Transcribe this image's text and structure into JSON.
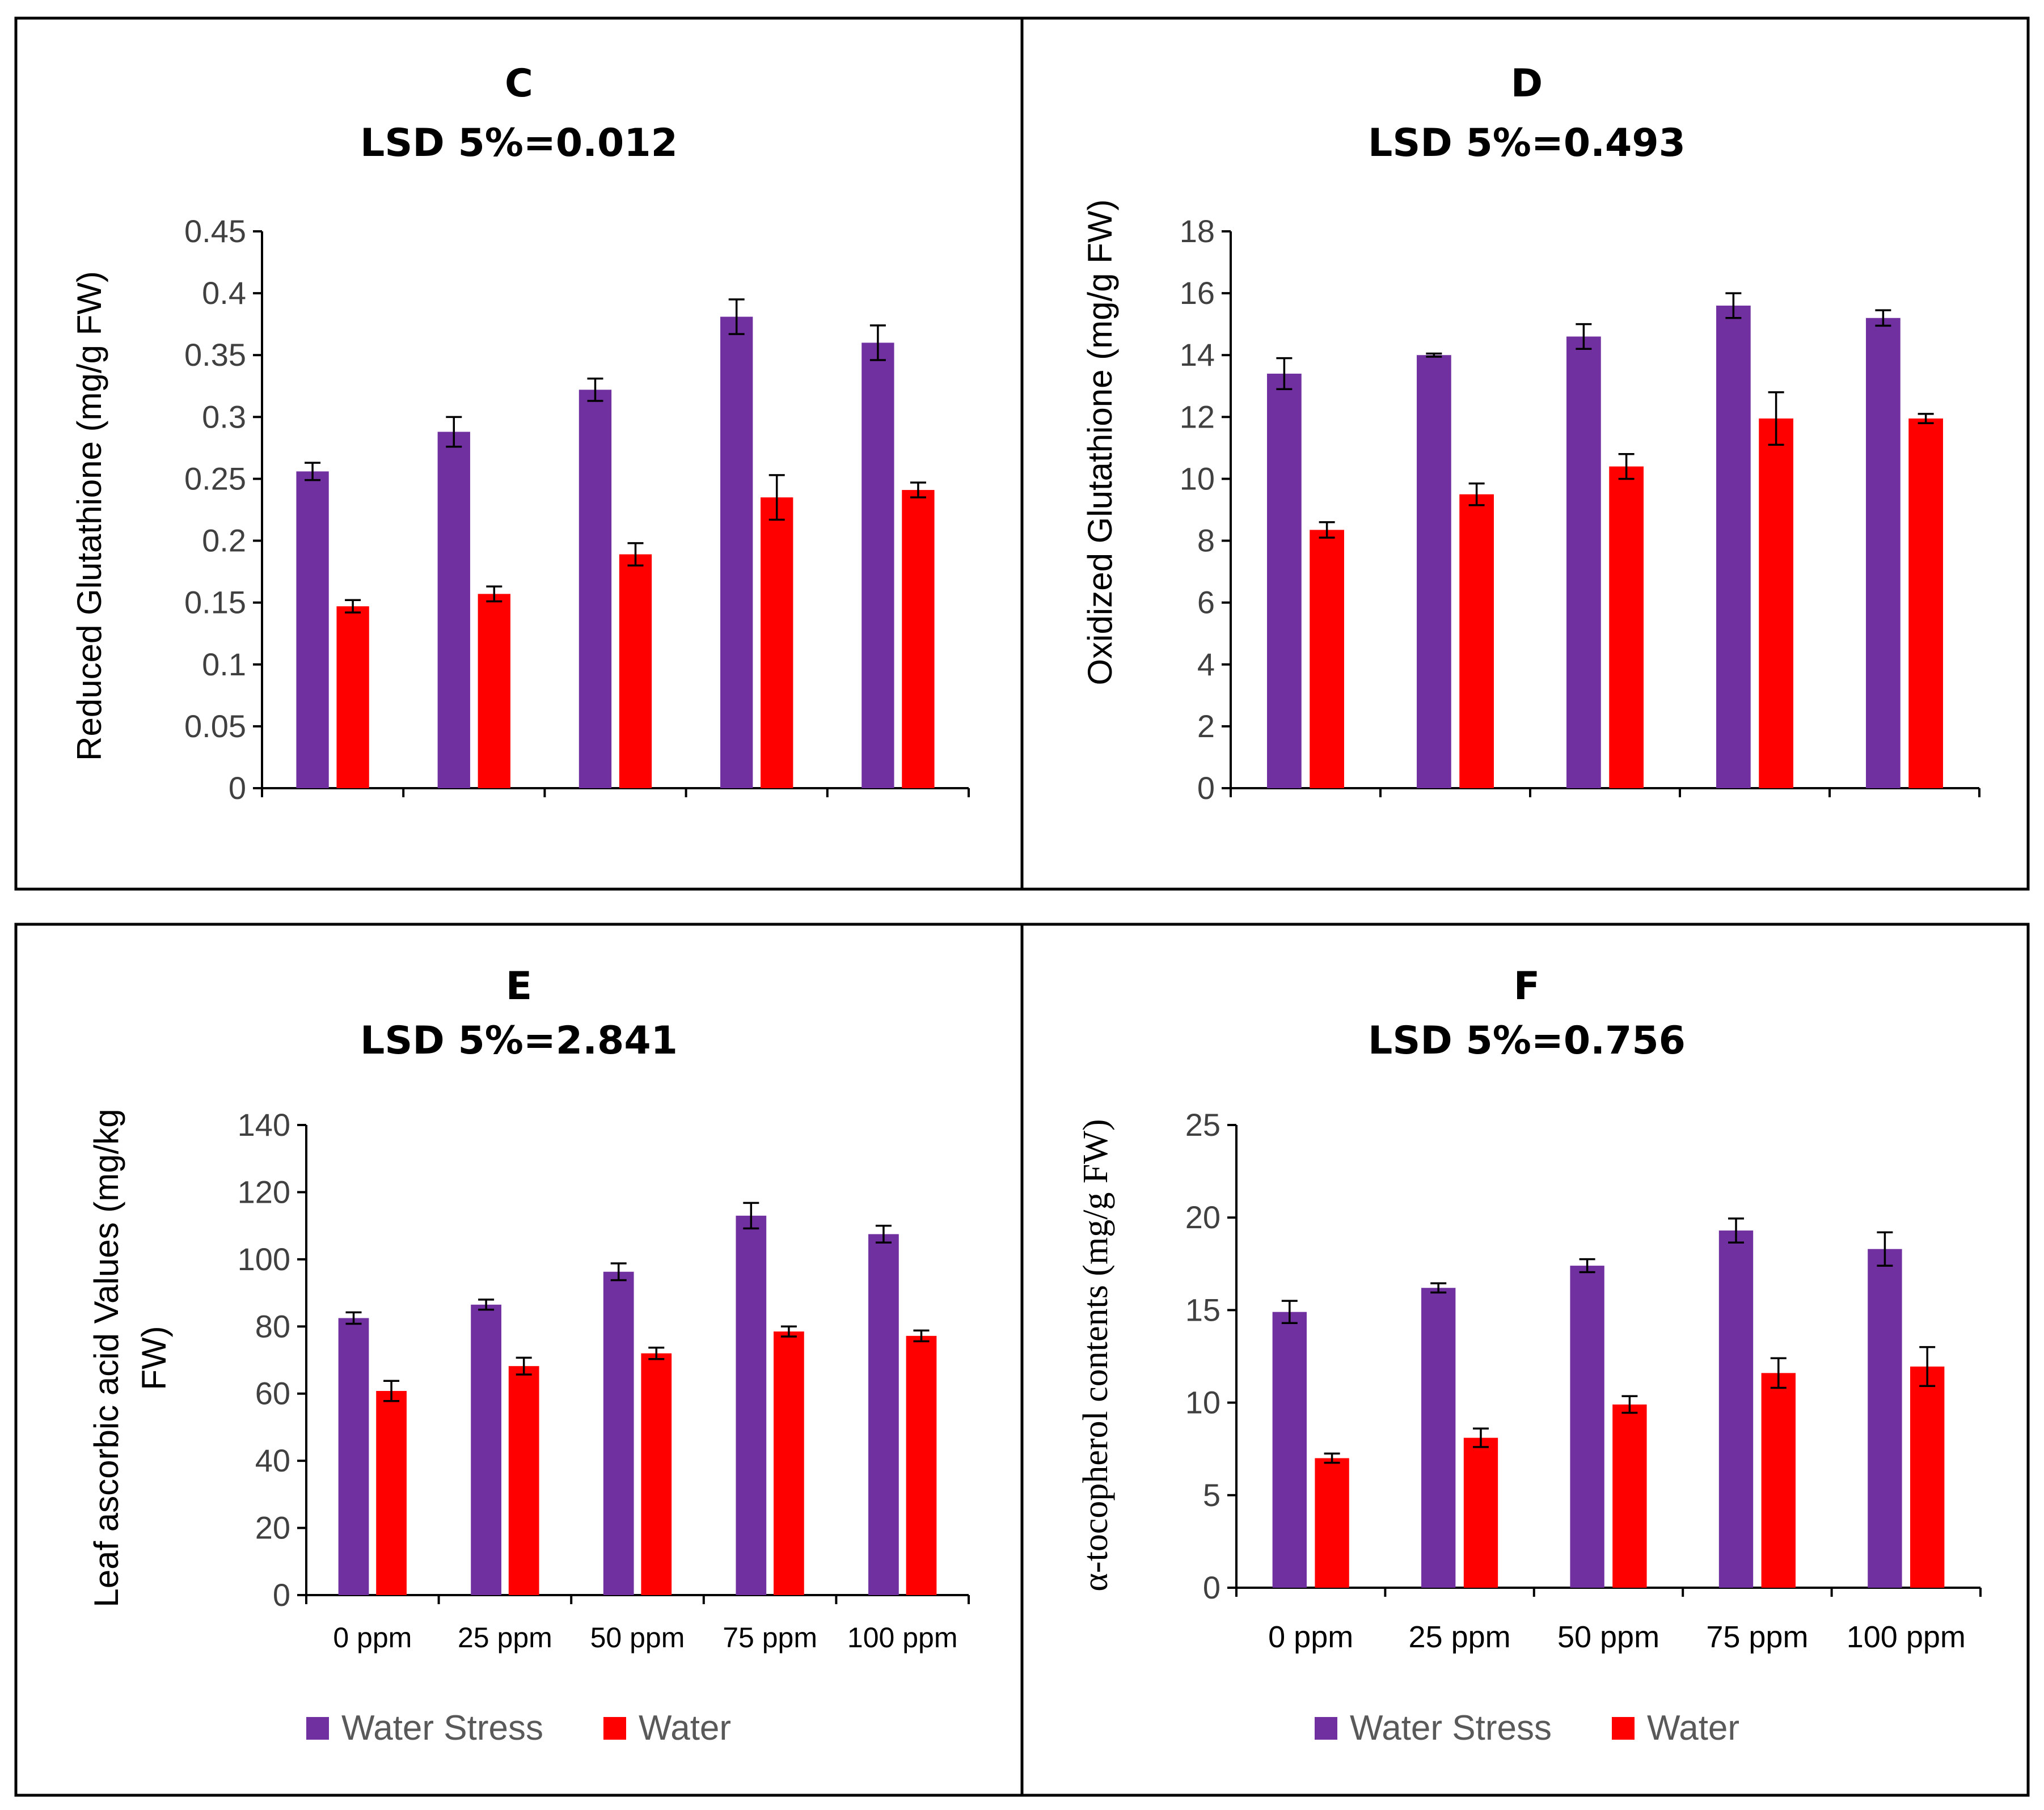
{
  "categories": [
    "0 ppm",
    "25 ppm",
    "50 ppm",
    "75 ppm",
    "100 ppm"
  ],
  "legend": {
    "series": [
      {
        "name": "Water Stress",
        "color": "#7030A0"
      },
      {
        "name": "Water",
        "color": "#FF0000"
      }
    ]
  },
  "chart_data": [
    {
      "type": "bar",
      "panel": "C",
      "title": "LSD 5%=0.012",
      "ylabel": "Reduced Glutathione (mg/g FW)",
      "ylim": [
        0,
        0.45
      ],
      "yticks": [
        0,
        0.05,
        0.1,
        0.15,
        0.2,
        0.25,
        0.3,
        0.35,
        0.4,
        0.45
      ],
      "ytick_labels": [
        "0",
        "0.05",
        "0.1",
        "0.15",
        "0.2",
        "0.25",
        "0.3",
        "0.35",
        "0.4",
        "0.45"
      ],
      "show_category_labels": false,
      "categories": [
        "0 ppm",
        "25 ppm",
        "50 ppm",
        "75 ppm",
        "100 ppm"
      ],
      "series": [
        {
          "name": "Water Stress",
          "color": "#7030A0",
          "values": [
            0.256,
            0.288,
            0.322,
            0.381,
            0.36
          ],
          "errors": [
            0.007,
            0.012,
            0.009,
            0.014,
            0.014
          ]
        },
        {
          "name": "Water",
          "color": "#FF0000",
          "values": [
            0.147,
            0.157,
            0.189,
            0.235,
            0.241
          ],
          "errors": [
            0.005,
            0.006,
            0.009,
            0.018,
            0.006
          ]
        }
      ]
    },
    {
      "type": "bar",
      "panel": "D",
      "title": "LSD 5%=0.493",
      "ylabel": "Oxidized Glutathione (mg/g FW)",
      "ylim": [
        0,
        18
      ],
      "yticks": [
        0,
        2,
        4,
        6,
        8,
        10,
        12,
        14,
        16,
        18
      ],
      "ytick_labels": [
        "0",
        "2",
        "4",
        "6",
        "8",
        "10",
        "12",
        "14",
        "16",
        "18"
      ],
      "show_category_labels": false,
      "categories": [
        "0 ppm",
        "25 ppm",
        "50 ppm",
        "75 ppm",
        "100 ppm"
      ],
      "series": [
        {
          "name": "Water Stress",
          "color": "#7030A0",
          "values": [
            13.4,
            14.0,
            14.6,
            15.6,
            15.2
          ],
          "errors": [
            0.5,
            0.05,
            0.4,
            0.4,
            0.25
          ]
        },
        {
          "name": "Water",
          "color": "#FF0000",
          "values": [
            8.35,
            9.5,
            10.4,
            11.95,
            11.95
          ],
          "errors": [
            0.25,
            0.35,
            0.4,
            0.85,
            0.15
          ]
        }
      ]
    },
    {
      "type": "bar",
      "panel": "E",
      "title": "LSD 5%=2.841",
      "ylabel": "Leaf ascorbic acid Values (mg/kg FW)",
      "ylabel_lines": [
        "Leaf ascorbic acid Values (mg/kg",
        "FW)"
      ],
      "ylim": [
        0,
        140
      ],
      "yticks": [
        0,
        20,
        40,
        60,
        80,
        100,
        120,
        140
      ],
      "ytick_labels": [
        "0",
        "20",
        "40",
        "60",
        "80",
        "100",
        "120",
        "140"
      ],
      "show_category_labels": true,
      "categories": [
        "0 ppm",
        "25 ppm",
        "50 ppm",
        "75 ppm",
        "100 ppm"
      ],
      "series": [
        {
          "name": "Water Stress",
          "color": "#7030A0",
          "values": [
            82.5,
            86.5,
            96.3,
            113.0,
            107.5
          ],
          "errors": [
            1.7,
            1.5,
            2.5,
            3.8,
            2.5
          ]
        },
        {
          "name": "Water",
          "color": "#FF0000",
          "values": [
            60.8,
            68.2,
            72.0,
            78.5,
            77.2
          ],
          "errors": [
            3.0,
            2.5,
            1.7,
            1.5,
            1.6
          ]
        }
      ]
    },
    {
      "type": "bar",
      "panel": "F",
      "title": "LSD 5%=0.756",
      "ylabel": "α-tocopherol contents (mg/g FW)",
      "ylim": [
        0,
        25
      ],
      "yticks": [
        0,
        5,
        10,
        15,
        20,
        25
      ],
      "ytick_labels": [
        "0",
        "5",
        "10",
        "15",
        "20",
        "25"
      ],
      "show_category_labels": true,
      "categories": [
        "0 ppm",
        "25 ppm",
        "50 ppm",
        "75 ppm",
        "100 ppm"
      ],
      "series": [
        {
          "name": "Water Stress",
          "color": "#7030A0",
          "values": [
            14.9,
            16.2,
            17.4,
            19.3,
            18.3
          ],
          "errors": [
            0.6,
            0.25,
            0.35,
            0.65,
            0.9
          ]
        },
        {
          "name": "Water",
          "color": "#FF0000",
          "values": [
            7.0,
            8.1,
            9.9,
            11.6,
            11.95
          ],
          "errors": [
            0.25,
            0.5,
            0.45,
            0.8,
            1.05
          ]
        }
      ]
    }
  ]
}
